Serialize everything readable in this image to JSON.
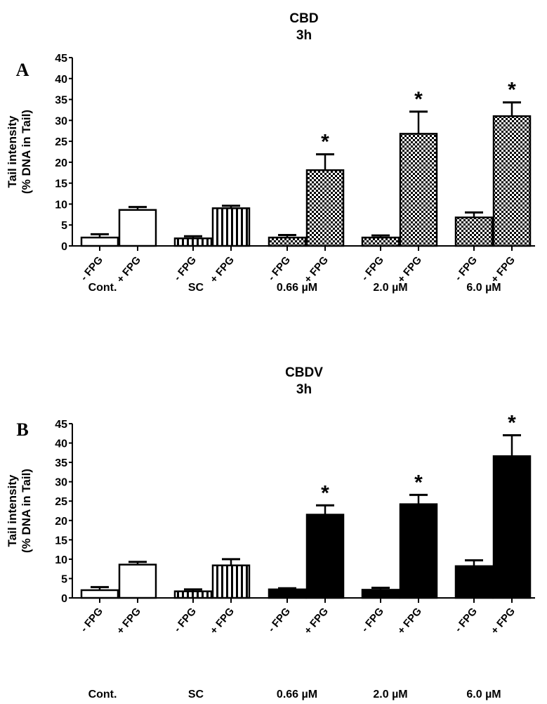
{
  "chart_data": [
    {
      "type": "bar",
      "panel": "A",
      "title": "CBD",
      "subtitle": "3h",
      "ylabel_line1": "Tail intensity",
      "ylabel_line2": "(%  DNA in Tail)",
      "ylim": [
        0,
        45
      ],
      "yticks": [
        "0",
        "5",
        "10",
        "15",
        "20",
        "25",
        "30",
        "35",
        "40",
        "45"
      ],
      "groups": [
        "Cont.",
        "SC",
        "0.66 µM",
        "2.0 µM",
        "6.0 µM"
      ],
      "bar_labels": [
        "- FPG",
        "+ FPG"
      ],
      "fills": [
        "white",
        "stripes",
        "checker",
        "checker",
        "checker"
      ],
      "series": [
        {
          "name": "- FPG",
          "values": [
            2.0,
            1.8,
            2.0,
            2.0,
            6.8
          ],
          "error": [
            0.8,
            0.5,
            0.6,
            0.5,
            1.2
          ],
          "significant": [
            false,
            false,
            false,
            false,
            false
          ]
        },
        {
          "name": "+ FPG",
          "values": [
            8.6,
            9.0,
            18.1,
            26.8,
            31.0
          ],
          "error": [
            0.7,
            0.6,
            3.8,
            5.3,
            3.3
          ],
          "significant": [
            false,
            false,
            true,
            true,
            true
          ]
        }
      ],
      "significance_marker": "*"
    },
    {
      "type": "bar",
      "panel": "B",
      "title": "CBDV",
      "subtitle": "3h",
      "ylabel_line1": "Tail intensity",
      "ylabel_line2": "(%  DNA in Tail)",
      "ylim": [
        0,
        45
      ],
      "yticks": [
        "0",
        "5",
        "10",
        "15",
        "20",
        "25",
        "30",
        "35",
        "40",
        "45"
      ],
      "groups": [
        "Cont.",
        "SC",
        "0.66 µM",
        "2.0 µM",
        "6.0 µM"
      ],
      "bar_labels": [
        "- FPG",
        "+ FPG"
      ],
      "fills": [
        "white",
        "stripes",
        "black",
        "black",
        "black"
      ],
      "series": [
        {
          "name": "- FPG",
          "values": [
            2.0,
            1.7,
            2.2,
            2.1,
            8.2
          ],
          "error": [
            0.8,
            0.5,
            0.3,
            0.5,
            1.5
          ],
          "significant": [
            false,
            false,
            false,
            false,
            false
          ]
        },
        {
          "name": "+ FPG",
          "values": [
            8.6,
            8.4,
            21.5,
            24.2,
            36.6
          ],
          "error": [
            0.7,
            1.6,
            2.4,
            2.4,
            5.4
          ],
          "significant": [
            false,
            false,
            true,
            true,
            true
          ]
        }
      ],
      "significance_marker": "*"
    }
  ]
}
